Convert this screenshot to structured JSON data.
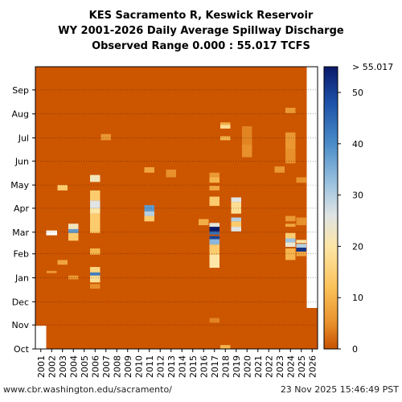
{
  "title_lines": [
    "KES Sacramento R, Keswick Reservoir",
    "WY 2001-2026 Daily Average Spillway Discharge",
    "Observed Range 0.000 : 55.017 TCFS"
  ],
  "footer": {
    "left": "www.cbr.washington.edu/sacramento/",
    "right": "23 Nov 2025 15:46:49 PST"
  },
  "colors": {
    "background_low": "#cc5500",
    "missing": "#ffffff",
    "gridline": "#000000"
  },
  "chart_data": {
    "type": "heatmap",
    "title": "KES Sacramento R, Keswick Reservoir WY 2001-2026 Daily Average Spillway Discharge Observed Range 0.000 : 55.017 TCFS",
    "x_categories": [
      "2001",
      "2002",
      "2003",
      "2004",
      "2005",
      "2006",
      "2007",
      "2008",
      "2009",
      "2010",
      "2011",
      "2012",
      "2013",
      "2014",
      "2015",
      "2016",
      "2017",
      "2018",
      "2019",
      "2020",
      "2021",
      "2022",
      "2023",
      "2024",
      "2025",
      "2026"
    ],
    "y_months": [
      "Oct",
      "Nov",
      "Dec",
      "Jan",
      "Feb",
      "Mar",
      "Apr",
      "May",
      "Jun",
      "Jul",
      "Aug",
      "Sep"
    ],
    "colorbar": {
      "min": 0,
      "max": 55.017,
      "ticks": [
        0,
        10,
        20,
        30,
        40,
        50
      ],
      "top_label": "> 55.017",
      "stops": [
        {
          "v": 0,
          "c": "#c85200"
        },
        {
          "v": 5,
          "c": "#e8902b"
        },
        {
          "v": 12,
          "c": "#fbc25a"
        },
        {
          "v": 20,
          "c": "#fde6a6"
        },
        {
          "v": 26,
          "c": "#e0e4e4"
        },
        {
          "v": 32,
          "c": "#9ec4e0"
        },
        {
          "v": 40,
          "c": "#4a8cc8"
        },
        {
          "v": 48,
          "c": "#1d52a8"
        },
        {
          "v": 55.017,
          "c": "#0a1a6a"
        }
      ]
    },
    "missing_periods": [
      {
        "year": "2001",
        "start_day": 0,
        "end_day": 30
      },
      {
        "year": "2002",
        "start_day": 147,
        "end_day": 153
      },
      {
        "year": "2026",
        "start_day": 53,
        "end_day": 365
      }
    ],
    "events": [
      {
        "year": "2002",
        "start_day": 98,
        "end_day": 101,
        "value": 6
      },
      {
        "year": "2002",
        "start_day": 150,
        "end_day": 154,
        "value": 3
      },
      {
        "year": "2003",
        "start_day": 109,
        "end_day": 115,
        "value": 8
      },
      {
        "year": "2003",
        "start_day": 205,
        "end_day": 212,
        "value": 14
      },
      {
        "year": "2004",
        "start_day": 90,
        "end_day": 95,
        "value": 6
      },
      {
        "year": "2004",
        "start_day": 140,
        "end_day": 150,
        "value": 14
      },
      {
        "year": "2004",
        "start_day": 150,
        "end_day": 155,
        "value": 38
      },
      {
        "year": "2004",
        "start_day": 155,
        "end_day": 162,
        "value": 22
      },
      {
        "year": "2006",
        "start_day": 78,
        "end_day": 84,
        "value": 5
      },
      {
        "year": "2006",
        "start_day": 86,
        "end_day": 95,
        "value": 18
      },
      {
        "year": "2006",
        "start_day": 95,
        "end_day": 99,
        "value": 42
      },
      {
        "year": "2006",
        "start_day": 99,
        "end_day": 106,
        "value": 16
      },
      {
        "year": "2006",
        "start_day": 122,
        "end_day": 130,
        "value": 10
      },
      {
        "year": "2006",
        "start_day": 150,
        "end_day": 175,
        "value": 14
      },
      {
        "year": "2006",
        "start_day": 175,
        "end_day": 182,
        "value": 20
      },
      {
        "year": "2006",
        "start_day": 182,
        "end_day": 192,
        "value": 26
      },
      {
        "year": "2006",
        "start_day": 192,
        "end_day": 205,
        "value": 14
      },
      {
        "year": "2006",
        "start_day": 216,
        "end_day": 225,
        "value": 22
      },
      {
        "year": "2007",
        "start_day": 270,
        "end_day": 278,
        "value": 6
      },
      {
        "year": "2011",
        "start_day": 165,
        "end_day": 172,
        "value": 14
      },
      {
        "year": "2011",
        "start_day": 172,
        "end_day": 178,
        "value": 30
      },
      {
        "year": "2011",
        "start_day": 178,
        "end_day": 186,
        "value": 38
      },
      {
        "year": "2011",
        "start_day": 228,
        "end_day": 235,
        "value": 8
      },
      {
        "year": "2013",
        "start_day": 222,
        "end_day": 232,
        "value": 5
      },
      {
        "year": "2016",
        "start_day": 160,
        "end_day": 168,
        "value": 9
      },
      {
        "year": "2017",
        "start_day": 34,
        "end_day": 40,
        "value": 4
      },
      {
        "year": "2017",
        "start_day": 105,
        "end_day": 122,
        "value": 20
      },
      {
        "year": "2017",
        "start_day": 122,
        "end_day": 135,
        "value": 14
      },
      {
        "year": "2017",
        "start_day": 135,
        "end_day": 142,
        "value": 34
      },
      {
        "year": "2017",
        "start_day": 142,
        "end_day": 146,
        "value": 50
      },
      {
        "year": "2017",
        "start_day": 148,
        "end_day": 152,
        "value": 44
      },
      {
        "year": "2017",
        "start_day": 152,
        "end_day": 158,
        "value": 55
      },
      {
        "year": "2017",
        "start_day": 158,
        "end_day": 163,
        "value": 25
      },
      {
        "year": "2017",
        "start_day": 185,
        "end_day": 197,
        "value": 14
      },
      {
        "year": "2017",
        "start_day": 205,
        "end_day": 211,
        "value": 8
      },
      {
        "year": "2017",
        "start_day": 215,
        "end_day": 222,
        "value": 10
      },
      {
        "year": "2017",
        "start_day": 222,
        "end_day": 228,
        "value": 6
      },
      {
        "year": "2018",
        "start_day": 0,
        "end_day": 5,
        "value": 10
      },
      {
        "year": "2018",
        "start_day": 270,
        "end_day": 275,
        "value": 10
      },
      {
        "year": "2018",
        "start_day": 285,
        "end_day": 290,
        "value": 18
      },
      {
        "year": "2018",
        "start_day": 290,
        "end_day": 293,
        "value": 9
      },
      {
        "year": "2019",
        "start_day": 152,
        "end_day": 158,
        "value": 26
      },
      {
        "year": "2019",
        "start_day": 158,
        "end_day": 165,
        "value": 14
      },
      {
        "year": "2019",
        "start_day": 165,
        "end_day": 170,
        "value": 30
      },
      {
        "year": "2019",
        "start_day": 175,
        "end_day": 190,
        "value": 18
      },
      {
        "year": "2019",
        "start_day": 190,
        "end_day": 196,
        "value": 26
      },
      {
        "year": "2020",
        "start_day": 248,
        "end_day": 265,
        "value": 5
      },
      {
        "year": "2020",
        "start_day": 265,
        "end_day": 288,
        "value": 4
      },
      {
        "year": "2023",
        "start_day": 228,
        "end_day": 236,
        "value": 6
      },
      {
        "year": "2024",
        "start_day": 115,
        "end_day": 130,
        "value": 10
      },
      {
        "year": "2024",
        "start_day": 132,
        "end_day": 138,
        "value": 24
      },
      {
        "year": "2024",
        "start_day": 138,
        "end_day": 143,
        "value": 32
      },
      {
        "year": "2024",
        "start_day": 143,
        "end_day": 150,
        "value": 14
      },
      {
        "year": "2024",
        "start_day": 158,
        "end_day": 162,
        "value": 8
      },
      {
        "year": "2024",
        "start_day": 165,
        "end_day": 172,
        "value": 6
      },
      {
        "year": "2024",
        "start_day": 240,
        "end_day": 258,
        "value": 5
      },
      {
        "year": "2024",
        "start_day": 258,
        "end_day": 280,
        "value": 6
      },
      {
        "year": "2024",
        "start_day": 305,
        "end_day": 312,
        "value": 6
      },
      {
        "year": "2025",
        "start_day": 120,
        "end_day": 126,
        "value": 8
      },
      {
        "year": "2025",
        "start_day": 126,
        "end_day": 131,
        "value": 52
      },
      {
        "year": "2025",
        "start_day": 131,
        "end_day": 136,
        "value": 30
      },
      {
        "year": "2025",
        "start_day": 137,
        "end_day": 141,
        "value": 20
      },
      {
        "year": "2025",
        "start_day": 160,
        "end_day": 170,
        "value": 5
      },
      {
        "year": "2025",
        "start_day": 215,
        "end_day": 222,
        "value": 5
      }
    ]
  }
}
